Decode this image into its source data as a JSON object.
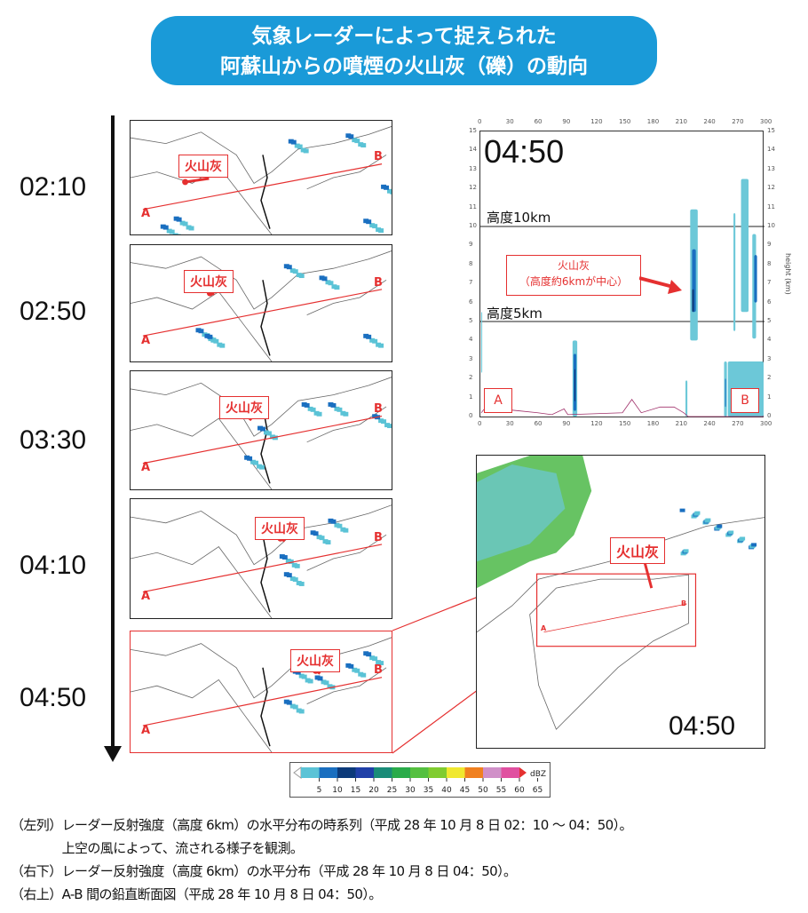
{
  "title": {
    "line1": "気象レーダーによって捉えられた",
    "line2": "阿蘇山からの噴煙の火山灰（礫）の動向"
  },
  "timeline": {
    "panels": [
      {
        "time": "02:10",
        "ash_label": "火山灰"
      },
      {
        "time": "02:50",
        "ash_label": "火山灰"
      },
      {
        "time": "03:30",
        "ash_label": "火山灰"
      },
      {
        "time": "04:10",
        "ash_label": "火山灰"
      },
      {
        "time": "04:50",
        "ash_label": "火山灰"
      }
    ],
    "point_a": "A",
    "point_b": "B"
  },
  "cross_section": {
    "time": "04:50",
    "x_ticks": [
      "0",
      "30",
      "60",
      "90",
      "120",
      "150",
      "180",
      "210",
      "240",
      "270",
      "300"
    ],
    "y_ticks": [
      "0",
      "1",
      "2",
      "3",
      "4",
      "5",
      "6",
      "7",
      "8",
      "9",
      "10",
      "11",
      "12",
      "13",
      "14",
      "15"
    ],
    "y_label": "height (km)",
    "level_10": "高度10km",
    "level_5": "高度5km",
    "callout_line1": "火山灰",
    "callout_line2": "（高度約6kmが中心）",
    "point_a": "A",
    "point_b": "B"
  },
  "detail_map": {
    "time": "04:50",
    "ash_label": "火山灰",
    "point_a": "A",
    "point_b": "B"
  },
  "colorbar": {
    "unit": "dBZ",
    "ticks": [
      "5",
      "10",
      "15",
      "20",
      "25",
      "30",
      "35",
      "40",
      "45",
      "50",
      "55",
      "60",
      "65"
    ],
    "colors": [
      "#5bc3d6",
      "#1a6fc0",
      "#0c3a7a",
      "#2040a8",
      "#1a8c78",
      "#2aab4a",
      "#55c040",
      "#80cc30",
      "#f0e830",
      "#f08020",
      "#d090c8",
      "#e050a0"
    ]
  },
  "captions": [
    "（左列）レーダー反射強度（高度 6km）の水平分布の時系列（平成 28 年 10 月 8 日 02：10 ～ 04：50）。",
    "　　　　上空の風によって、流される様子を観測。",
    "（右下）レーダー反射強度（高度 6km）の水平分布（平成 28 年 10 月 8 日 04：50）。",
    "（右上）A-B 間の鉛直断面図（平成 28 年 10 月 8 日 04：50）。"
  ]
}
